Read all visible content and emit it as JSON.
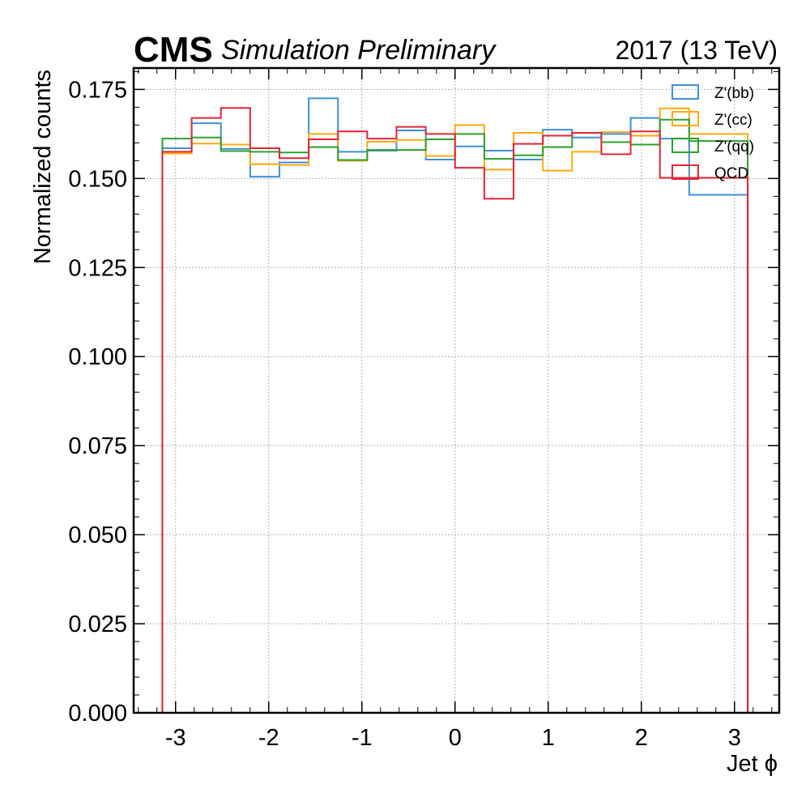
{
  "chart_data": {
    "type": "step-histogram",
    "experiment_label": "CMS",
    "experiment_sublabel": "Simulation Preliminary",
    "lumi_label": "2017 (13 TeV)",
    "xlabel": "Jet ϕ",
    "ylabel": "Normalized counts",
    "xlim": [
      -3.45,
      3.48
    ],
    "ylim": [
      0.0,
      0.181
    ],
    "xticks": [
      {
        "value": -3,
        "label": "-3"
      },
      {
        "value": -2,
        "label": "-2"
      },
      {
        "value": -1,
        "label": "-1"
      },
      {
        "value": 0,
        "label": "0"
      },
      {
        "value": 1,
        "label": "1"
      },
      {
        "value": 2,
        "label": "2"
      },
      {
        "value": 3,
        "label": "3"
      }
    ],
    "yticks": [
      {
        "value": 0.0,
        "label": "0.000"
      },
      {
        "value": 0.025,
        "label": "0.025"
      },
      {
        "value": 0.05,
        "label": "0.050"
      },
      {
        "value": 0.075,
        "label": "0.075"
      },
      {
        "value": 0.1,
        "label": "0.100"
      },
      {
        "value": 0.125,
        "label": "0.125"
      },
      {
        "value": 0.15,
        "label": "0.150"
      },
      {
        "value": 0.175,
        "label": "0.175"
      }
    ],
    "grid": true,
    "legend_position": "top-right",
    "bin_edges": [
      -3.1416,
      -2.8274,
      -2.5133,
      -2.1991,
      -1.885,
      -1.5708,
      -1.2566,
      -0.9425,
      -0.6283,
      -0.3142,
      0.0,
      0.3142,
      0.6283,
      0.9425,
      1.2566,
      1.5708,
      1.885,
      2.1991,
      2.5133,
      2.8274,
      3.1416
    ],
    "series": [
      {
        "name": "Z'(bb)",
        "color": "#3f90da",
        "values": [
          0.1585,
          0.1655,
          0.1583,
          0.1505,
          0.1545,
          0.1725,
          0.1575,
          0.1578,
          0.1635,
          0.1553,
          0.159,
          0.1578,
          0.1553,
          0.1637,
          0.1615,
          0.1625,
          0.167,
          0.1612,
          0.1454,
          0.1454
        ]
      },
      {
        "name": "Z'(cc)",
        "color": "#ffa90e",
        "values": [
          0.157,
          0.1598,
          0.1595,
          0.154,
          0.1538,
          0.1625,
          0.155,
          0.1603,
          0.1608,
          0.1563,
          0.165,
          0.1525,
          0.1628,
          0.1522,
          0.1575,
          0.163,
          0.162,
          0.1697,
          0.1625,
          0.1625
        ]
      },
      {
        "name": "Z'(qq)",
        "color": "#2ca02c",
        "values": [
          0.1612,
          0.1615,
          0.1577,
          0.1575,
          0.1573,
          0.1588,
          0.1552,
          0.158,
          0.158,
          0.161,
          0.1625,
          0.1555,
          0.1565,
          0.1588,
          0.1628,
          0.1602,
          0.1595,
          0.1665,
          0.1605,
          0.1605
        ]
      },
      {
        "name": "QCD",
        "color": "#e42536",
        "values": [
          0.1575,
          0.167,
          0.1698,
          0.1585,
          0.1557,
          0.161,
          0.1632,
          0.1612,
          0.1645,
          0.1625,
          0.153,
          0.1443,
          0.1597,
          0.162,
          0.1628,
          0.1568,
          0.1632,
          0.1502,
          0.1502,
          0.1502
        ]
      }
    ]
  }
}
